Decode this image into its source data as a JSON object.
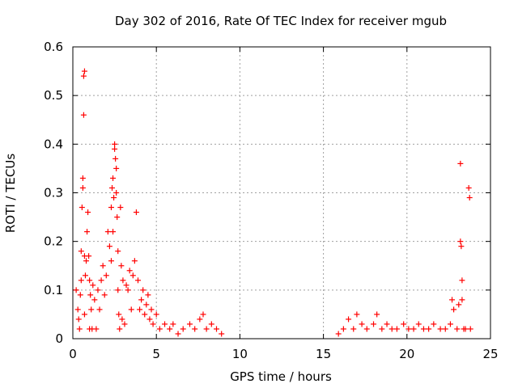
{
  "chart_data": {
    "type": "scatter",
    "title": "Day 302 of 2016, Rate Of TEC Index for receiver mgub",
    "xlabel": "GPS time / hours",
    "ylabel": "ROTI / TECUs",
    "xlim": [
      0,
      25
    ],
    "ylim": [
      0,
      0.6
    ],
    "x_ticks": [
      "0",
      "5",
      "10",
      "15",
      "20",
      "25"
    ],
    "y_ticks": [
      "0",
      "0.1",
      "0.2",
      "0.3",
      "0.4",
      "0.5",
      "0.6"
    ],
    "grid": true,
    "marker": "plus",
    "series_color": "#ff0000",
    "series": [
      {
        "name": "ROTI",
        "x": [
          0.2,
          0.3,
          0.35,
          0.4,
          0.45,
          0.5,
          0.5,
          0.55,
          0.6,
          0.6,
          0.65,
          0.65,
          0.7,
          0.7,
          0.7,
          0.75,
          0.8,
          0.85,
          0.9,
          0.95,
          1.0,
          1.0,
          1.05,
          1.1,
          1.15,
          1.2,
          1.3,
          1.4,
          1.5,
          1.6,
          1.7,
          1.8,
          1.9,
          2.0,
          2.1,
          2.2,
          2.3,
          2.3,
          2.35,
          2.4,
          2.4,
          2.45,
          2.5,
          2.5,
          2.55,
          2.6,
          2.6,
          2.65,
          2.7,
          2.7,
          2.75,
          2.8,
          2.85,
          2.9,
          2.95,
          3.0,
          3.1,
          3.2,
          3.3,
          3.4,
          3.5,
          3.6,
          3.7,
          3.8,
          3.9,
          4.0,
          4.1,
          4.2,
          4.3,
          4.4,
          4.5,
          4.6,
          4.7,
          4.8,
          5.0,
          5.2,
          5.5,
          5.8,
          6.0,
          6.3,
          6.6,
          7.0,
          7.3,
          7.6,
          7.8,
          8.0,
          8.3,
          8.6,
          8.9,
          15.9,
          16.2,
          16.5,
          16.8,
          17.0,
          17.3,
          17.6,
          18.0,
          18.2,
          18.5,
          18.8,
          19.1,
          19.4,
          19.8,
          20.1,
          20.4,
          20.7,
          21.0,
          21.3,
          21.6,
          22.0,
          22.3,
          22.6,
          22.7,
          22.8,
          23.0,
          23.1,
          23.2,
          23.2,
          23.25,
          23.3,
          23.3,
          23.4,
          23.5,
          23.7,
          23.75,
          23.8
        ],
        "y": [
          0.1,
          0.06,
          0.04,
          0.02,
          0.09,
          0.12,
          0.18,
          0.27,
          0.33,
          0.31,
          0.46,
          0.54,
          0.55,
          0.17,
          0.05,
          0.13,
          0.16,
          0.22,
          0.26,
          0.17,
          0.12,
          0.02,
          0.09,
          0.06,
          0.02,
          0.11,
          0.08,
          0.02,
          0.1,
          0.06,
          0.12,
          0.15,
          0.09,
          0.13,
          0.22,
          0.19,
          0.27,
          0.16,
          0.31,
          0.22,
          0.33,
          0.29,
          0.4,
          0.39,
          0.37,
          0.35,
          0.3,
          0.25,
          0.18,
          0.1,
          0.05,
          0.02,
          0.27,
          0.15,
          0.04,
          0.12,
          0.03,
          0.11,
          0.1,
          0.14,
          0.06,
          0.13,
          0.16,
          0.26,
          0.12,
          0.06,
          0.08,
          0.1,
          0.05,
          0.07,
          0.09,
          0.04,
          0.06,
          0.03,
          0.05,
          0.02,
          0.03,
          0.02,
          0.03,
          0.01,
          0.02,
          0.03,
          0.02,
          0.04,
          0.05,
          0.02,
          0.03,
          0.02,
          0.01,
          0.01,
          0.02,
          0.04,
          0.02,
          0.05,
          0.03,
          0.02,
          0.03,
          0.05,
          0.02,
          0.03,
          0.02,
          0.02,
          0.03,
          0.02,
          0.02,
          0.03,
          0.02,
          0.02,
          0.03,
          0.02,
          0.02,
          0.03,
          0.08,
          0.06,
          0.02,
          0.07,
          0.36,
          0.2,
          0.19,
          0.12,
          0.08,
          0.02,
          0.02,
          0.31,
          0.29,
          0.02
        ]
      }
    ]
  }
}
